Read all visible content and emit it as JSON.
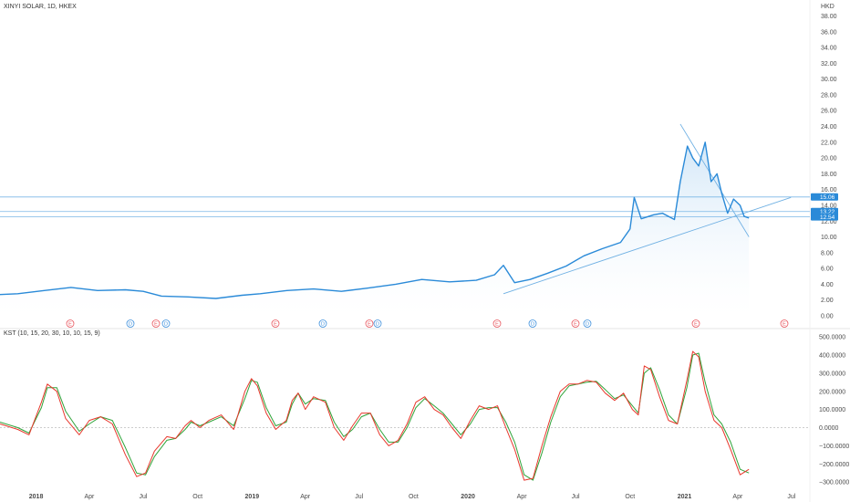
{
  "header": {
    "symbol_title": "XINYI SOLAR, 1D, HKEX",
    "currency": "HKD"
  },
  "colors": {
    "price_line": "#2a8ad8",
    "price_fill_top": "#cfe5f7",
    "hline": "#7ab6e6",
    "trendline": "#6fb0e3",
    "kst_line": "#e8372c",
    "kst_signal": "#2fa43a",
    "earnings_marker": "#e8555d",
    "dividend_marker": "#3c8fdc",
    "label_bg": "#2a8ad8",
    "separator": "#e6e6e6"
  },
  "price_axis": {
    "ticks": [
      "38.00",
      "36.00",
      "34.00",
      "32.00",
      "30.00",
      "28.00",
      "26.00",
      "24.00",
      "22.00",
      "20.00",
      "18.00",
      "16.00",
      "14.00",
      "12.00",
      "10.00",
      "8.00",
      "6.00",
      "4.00",
      "2.00",
      "0.00"
    ],
    "price_labels": [
      "15.06",
      "13.22",
      "12.54"
    ]
  },
  "kst_panel": {
    "title": "KST (10, 15, 20, 30, 10, 10, 15, 9)",
    "ticks": [
      "500.0000",
      "400.0000",
      "300.0000",
      "200.0000",
      "100.0000",
      "0.0000",
      "−100.0000",
      "−200.0000",
      "−300.0000"
    ]
  },
  "time_axis": {
    "labels": [
      "2018",
      "Apr",
      "Jul",
      "Oct",
      "2019",
      "Apr",
      "Jul",
      "Oct",
      "2020",
      "Apr",
      "Jul",
      "Oct",
      "2021",
      "Apr",
      "Jul"
    ]
  },
  "events": {
    "markers": [
      {
        "letter": "E",
        "kind": "earnings"
      },
      {
        "letter": "D",
        "kind": "dividend"
      },
      {
        "letter": "E",
        "kind": "earnings"
      },
      {
        "letter": "D",
        "kind": "dividend"
      },
      {
        "letter": "E",
        "kind": "earnings"
      },
      {
        "letter": "D",
        "kind": "dividend"
      },
      {
        "letter": "E",
        "kind": "earnings"
      },
      {
        "letter": "D",
        "kind": "dividend"
      },
      {
        "letter": "E",
        "kind": "earnings"
      },
      {
        "letter": "D",
        "kind": "dividend"
      },
      {
        "letter": "E",
        "kind": "earnings"
      },
      {
        "letter": "D",
        "kind": "dividend"
      },
      {
        "letter": "E",
        "kind": "earnings"
      },
      {
        "letter": "E",
        "kind": "earnings"
      }
    ]
  },
  "chart_data": [
    {
      "type": "line",
      "title": "XINYI SOLAR, 1D, HKEX",
      "ylabel": "HKD",
      "ylim": [
        0,
        39
      ],
      "x_range": [
        "2017-11",
        "2021-08"
      ],
      "horizontal_levels": [
        15.06,
        13.22,
        12.54
      ],
      "series": [
        {
          "x": [
            "2017-11-01",
            "2017-12-01",
            "2018-01-15",
            "2018-03-01",
            "2018-04-15",
            "2018-06-01",
            "2018-07-01",
            "2018-08-01",
            "2018-09-15",
            "2018-11-01",
            "2018-12-15",
            "2019-01-15",
            "2019-03-01",
            "2019-04-15",
            "2019-06-01",
            "2019-07-15",
            "2019-09-01",
            "2019-10-15",
            "2019-12-01",
            "2020-01-15",
            "2020-02-15",
            "2020-03-01",
            "2020-03-20",
            "2020-04-15",
            "2020-05-15",
            "2020-06-15",
            "2020-07-15",
            "2020-08-15",
            "2020-09-15",
            "2020-10-01",
            "2020-10-08",
            "2020-10-20",
            "2020-11-10",
            "2020-11-25",
            "2020-12-05",
            "2020-12-15",
            "2020-12-25",
            "2021-01-06",
            "2021-01-15",
            "2021-01-25",
            "2021-02-05",
            "2021-02-15",
            "2021-02-25",
            "2021-03-05",
            "2021-03-15",
            "2021-03-25",
            "2021-04-05",
            "2021-04-12",
            "2021-04-20"
          ],
          "values": [
            2.7,
            2.8,
            3.2,
            3.6,
            3.2,
            3.3,
            3.1,
            2.5,
            2.4,
            2.2,
            2.6,
            2.8,
            3.2,
            3.4,
            3.1,
            3.5,
            4.0,
            4.6,
            4.3,
            4.5,
            5.2,
            6.4,
            4.2,
            4.6,
            5.4,
            6.3,
            7.6,
            8.5,
            9.3,
            11.0,
            15.0,
            12.3,
            12.8,
            13.0,
            12.6,
            12.2,
            17.0,
            21.5,
            20.0,
            19.0,
            22.0,
            17.0,
            18.0,
            15.5,
            13.0,
            14.8,
            14.0,
            12.6,
            12.4
          ]
        }
      ],
      "trendlines": [
        {
          "from": {
            "x": "2020-03-01",
            "y": 2.8
          },
          "to": {
            "x": "2021-06-30",
            "y": 15.0
          }
        },
        {
          "from": {
            "x": "2020-12-25",
            "y": 24.3
          },
          "to": {
            "x": "2021-04-20",
            "y": 10.0
          }
        }
      ]
    },
    {
      "type": "line",
      "title": "KST (10, 15, 20, 30, 10, 10, 15, 9)",
      "ylim": [
        -330,
        510
      ],
      "x_range": [
        "2017-11",
        "2021-08"
      ],
      "series": [
        {
          "name": "KST",
          "x": [
            "2017-11-01",
            "2017-12-01",
            "2017-12-20",
            "2018-01-10",
            "2018-01-20",
            "2018-02-05",
            "2018-02-20",
            "2018-03-15",
            "2018-04-01",
            "2018-04-20",
            "2018-05-10",
            "2018-06-01",
            "2018-06-20",
            "2018-07-05",
            "2018-07-20",
            "2018-08-10",
            "2018-08-25",
            "2018-09-10",
            "2018-09-20",
            "2018-10-05",
            "2018-10-20",
            "2018-11-10",
            "2018-12-01",
            "2018-12-20",
            "2018-12-31",
            "2019-01-10",
            "2019-01-25",
            "2019-02-10",
            "2019-02-28",
            "2019-03-10",
            "2019-03-20",
            "2019-04-01",
            "2019-04-15",
            "2019-05-05",
            "2019-05-20",
            "2019-06-05",
            "2019-06-20",
            "2019-07-05",
            "2019-07-20",
            "2019-08-05",
            "2019-08-20",
            "2019-09-05",
            "2019-09-20",
            "2019-10-05",
            "2019-10-20",
            "2019-11-05",
            "2019-11-20",
            "2019-12-05",
            "2019-12-20",
            "2020-01-05",
            "2020-01-20",
            "2020-02-05",
            "2020-02-20",
            "2020-03-05",
            "2020-03-20",
            "2020-04-05",
            "2020-04-20",
            "2020-05-05",
            "2020-05-20",
            "2020-06-05",
            "2020-06-20",
            "2020-07-05",
            "2020-07-20",
            "2020-08-05",
            "2020-08-20",
            "2020-09-05",
            "2020-09-20",
            "2020-10-05",
            "2020-10-15",
            "2020-10-25",
            "2020-11-05",
            "2020-11-20",
            "2020-12-05",
            "2020-12-20",
            "2021-01-05",
            "2021-01-15",
            "2021-01-25",
            "2021-02-05",
            "2021-02-20",
            "2021-03-05",
            "2021-03-20",
            "2021-04-05",
            "2021-04-20"
          ],
          "values": [
            20,
            -10,
            -40,
            140,
            240,
            200,
            50,
            -40,
            40,
            60,
            20,
            -150,
            -270,
            -250,
            -130,
            -50,
            -60,
            10,
            40,
            0,
            40,
            70,
            -10,
            200,
            270,
            230,
            80,
            -10,
            40,
            150,
            190,
            100,
            170,
            140,
            0,
            -70,
            10,
            80,
            80,
            -40,
            -100,
            -70,
            20,
            140,
            170,
            100,
            70,
            0,
            -60,
            40,
            120,
            100,
            120,
            0,
            -120,
            -290,
            -280,
            -100,
            60,
            200,
            240,
            240,
            260,
            250,
            190,
            150,
            190,
            100,
            70,
            340,
            320,
            170,
            40,
            20,
            260,
            420,
            390,
            200,
            40,
            0,
            -120,
            -260,
            -230
          ]
        },
        {
          "name": "Signal",
          "x": [
            "2017-11-01",
            "2017-12-01",
            "2017-12-20",
            "2018-01-10",
            "2018-01-20",
            "2018-02-05",
            "2018-02-20",
            "2018-03-15",
            "2018-04-01",
            "2018-04-20",
            "2018-05-10",
            "2018-06-01",
            "2018-06-20",
            "2018-07-05",
            "2018-07-20",
            "2018-08-10",
            "2018-08-25",
            "2018-09-10",
            "2018-09-20",
            "2018-10-05",
            "2018-10-20",
            "2018-11-10",
            "2018-12-01",
            "2018-12-20",
            "2018-12-31",
            "2019-01-10",
            "2019-01-25",
            "2019-02-10",
            "2019-02-28",
            "2019-03-10",
            "2019-03-20",
            "2019-04-01",
            "2019-04-15",
            "2019-05-05",
            "2019-05-20",
            "2019-06-05",
            "2019-06-20",
            "2019-07-05",
            "2019-07-20",
            "2019-08-05",
            "2019-08-20",
            "2019-09-05",
            "2019-09-20",
            "2019-10-05",
            "2019-10-20",
            "2019-11-05",
            "2019-11-20",
            "2019-12-05",
            "2019-12-20",
            "2020-01-05",
            "2020-01-20",
            "2020-02-05",
            "2020-02-20",
            "2020-03-05",
            "2020-03-20",
            "2020-04-05",
            "2020-04-20",
            "2020-05-05",
            "2020-05-20",
            "2020-06-05",
            "2020-06-20",
            "2020-07-05",
            "2020-07-20",
            "2020-08-05",
            "2020-08-20",
            "2020-09-05",
            "2020-09-20",
            "2020-10-05",
            "2020-10-15",
            "2020-10-25",
            "2020-11-05",
            "2020-11-20",
            "2020-12-05",
            "2020-12-20",
            "2021-01-05",
            "2021-01-15",
            "2021-01-25",
            "2021-02-05",
            "2021-02-20",
            "2021-03-05",
            "2021-03-20",
            "2021-04-05",
            "2021-04-20"
          ],
          "values": [
            30,
            0,
            -30,
            110,
            220,
            220,
            90,
            -20,
            20,
            60,
            40,
            -110,
            -250,
            -260,
            -160,
            -70,
            -60,
            -10,
            30,
            10,
            30,
            60,
            10,
            160,
            260,
            250,
            110,
            10,
            30,
            130,
            190,
            130,
            160,
            150,
            30,
            -50,
            -10,
            60,
            80,
            -10,
            -80,
            -80,
            0,
            110,
            160,
            120,
            80,
            20,
            -40,
            20,
            100,
            110,
            110,
            30,
            -80,
            -260,
            -290,
            -140,
            30,
            170,
            230,
            240,
            250,
            255,
            210,
            160,
            180,
            120,
            80,
            300,
            330,
            210,
            70,
            20,
            220,
            400,
            410,
            250,
            70,
            20,
            -80,
            -230,
            -250
          ]
        }
      ]
    }
  ]
}
